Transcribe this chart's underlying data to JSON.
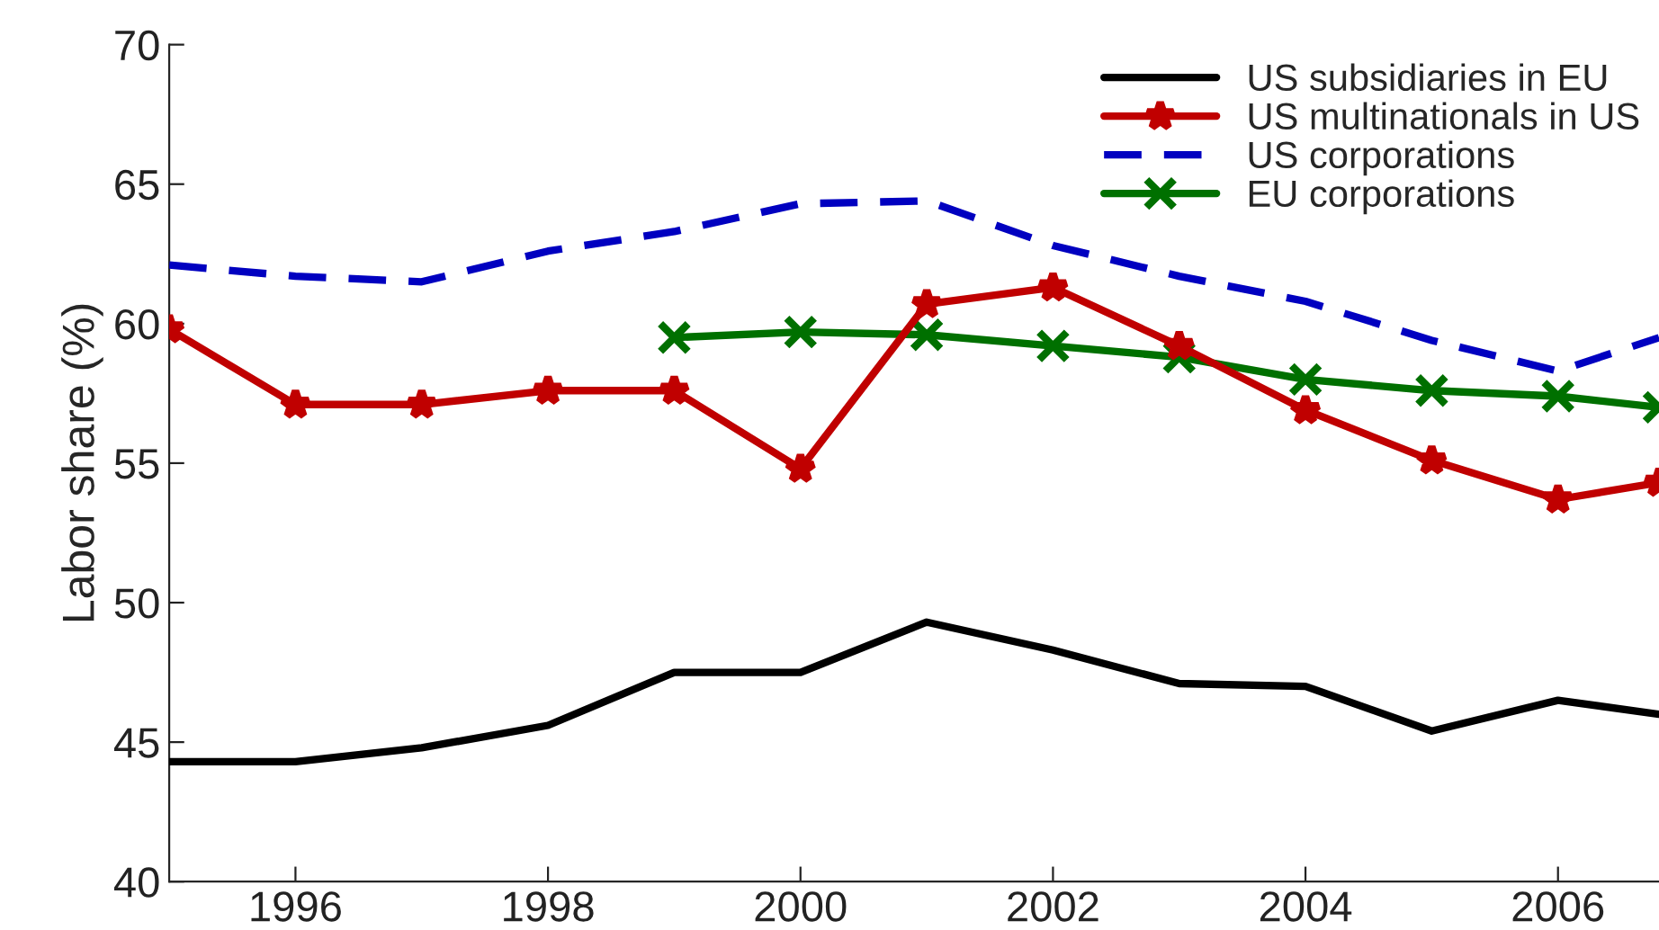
{
  "chart_data": {
    "type": "line",
    "ylabel": "Labor share (%)",
    "x": [
      1995,
      1996,
      1997,
      1998,
      1999,
      2000,
      2001,
      2002,
      2003,
      2004,
      2005,
      2006,
      2006.8
    ],
    "series": [
      {
        "name": "US subsidiaries in EU",
        "color": "#000000",
        "marker": "none",
        "line_style": "solid",
        "values": [
          44.3,
          44.3,
          44.8,
          45.6,
          47.5,
          47.5,
          49.3,
          48.3,
          47.1,
          47.0,
          45.4,
          46.5,
          46.0
        ]
      },
      {
        "name": "US multinationals in US",
        "color": "#c00000",
        "marker": "star",
        "line_style": "solid",
        "values": [
          59.8,
          57.1,
          57.1,
          57.6,
          57.6,
          54.8,
          60.7,
          61.3,
          59.2,
          56.9,
          55.1,
          53.7,
          54.3
        ]
      },
      {
        "name": "US corporations",
        "color": "#0000c0",
        "marker": "none",
        "line_style": "dashed",
        "values": [
          62.1,
          61.7,
          61.5,
          62.6,
          63.3,
          64.3,
          64.4,
          62.8,
          61.7,
          60.8,
          59.4,
          58.3,
          59.5
        ]
      },
      {
        "name": "EU corporations",
        "color": "#007000",
        "marker": "cross",
        "line_style": "solid",
        "values": [
          null,
          null,
          null,
          null,
          59.5,
          59.7,
          59.6,
          59.2,
          58.8,
          58.0,
          57.6,
          57.4,
          57.0
        ]
      }
    ],
    "xlim": [
      1995,
      2006.8
    ],
    "xticks": [
      1996,
      1998,
      2000,
      2002,
      2004,
      2006
    ],
    "ylim": [
      40,
      70
    ],
    "yticks": [
      40,
      45,
      50,
      55,
      60,
      65,
      70
    ],
    "grid": false,
    "legend": "top right"
  }
}
